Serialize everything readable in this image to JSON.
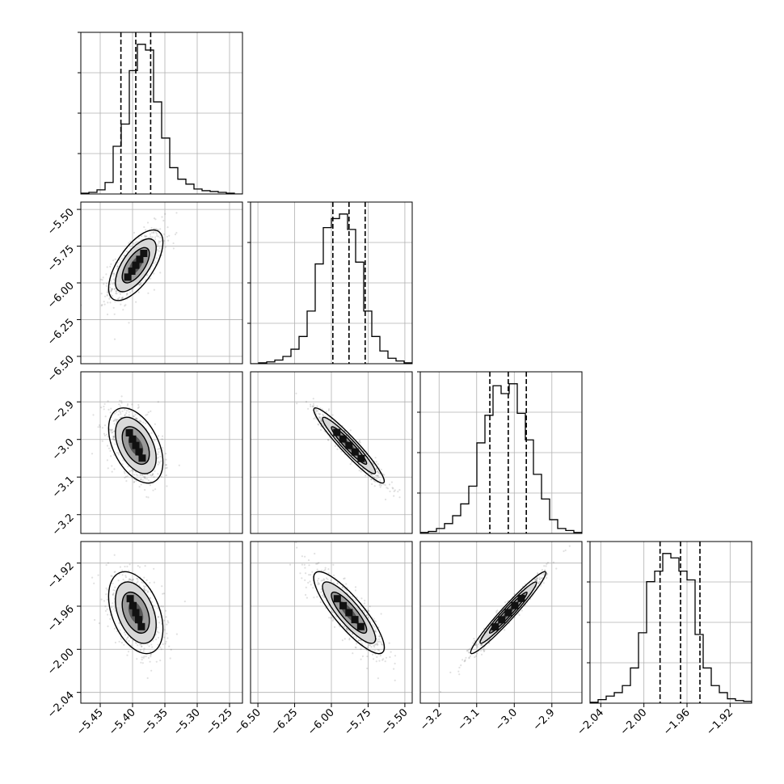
{
  "chart_data": {
    "type": "corner",
    "grid": true,
    "colors": {
      "line": "#000000",
      "grid": "#b0b0b0",
      "scatter": "#000000",
      "fill": "#ffffff"
    },
    "params": [
      {
        "range": [
          -5.48,
          -5.23
        ],
        "ticks": [
          -5.45,
          -5.4,
          -5.35,
          -5.3,
          -5.25
        ],
        "tick_labels": [
          "−5.45",
          "−5.40",
          "−5.35",
          "−5.30",
          "−5.25"
        ],
        "quantiles": [
          -5.418,
          -5.395,
          -5.372
        ],
        "mean": -5.395,
        "sd": 0.021
      },
      {
        "range": [
          -6.55,
          -5.45
        ],
        "ticks": [
          -6.5,
          -6.25,
          -6.0,
          -5.75,
          -5.5
        ],
        "tick_labels": [
          "−6.50",
          "−6.25",
          "−6.00",
          "−5.75",
          "−5.50"
        ],
        "quantiles": [
          -5.99,
          -5.88,
          -5.77
        ],
        "mean": -5.88,
        "sd": 0.12
      },
      {
        "range": [
          -3.25,
          -2.82
        ],
        "ticks": [
          -3.2,
          -3.1,
          -3.0,
          -2.9
        ],
        "tick_labels": [
          "−3.2",
          "−3.1",
          "−3.0",
          "−2.9"
        ],
        "quantiles": [
          -3.065,
          -3.016,
          -2.968
        ],
        "mean": -3.016,
        "sd": 0.05
      },
      {
        "range": [
          -2.05,
          -1.9
        ],
        "ticks": [
          -2.04,
          -2.0,
          -1.96,
          -1.92
        ],
        "tick_labels": [
          "−2.04",
          "−2.00",
          "−1.96",
          "−1.92"
        ],
        "quantiles": [
          -1.985,
          -1.966,
          -1.948
        ],
        "mean": -1.966,
        "sd": 0.019
      }
    ],
    "histograms": [
      [
        1,
        2,
        5,
        14,
        58,
        85,
        150,
        182,
        175,
        112,
        68,
        32,
        18,
        12,
        6,
        4,
        3,
        2,
        1,
        0
      ],
      [
        0,
        1,
        2,
        4,
        8,
        16,
        30,
        58,
        110,
        150,
        160,
        165,
        148,
        112,
        58,
        30,
        14,
        6,
        3,
        1
      ],
      [
        1,
        2,
        5,
        10,
        18,
        30,
        48,
        92,
        120,
        150,
        142,
        152,
        122,
        95,
        60,
        35,
        14,
        5,
        3,
        1
      ],
      [
        1,
        4,
        8,
        12,
        20,
        40,
        80,
        138,
        150,
        170,
        165,
        150,
        140,
        78,
        40,
        20,
        12,
        5,
        3,
        2
      ]
    ],
    "correlations": [
      [
        0,
        1,
        0.65
      ],
      [
        0,
        2,
        -0.45
      ],
      [
        0,
        3,
        -0.4
      ],
      [
        1,
        2,
        -0.95
      ],
      [
        1,
        3,
        -0.85
      ],
      [
        2,
        3,
        0.97
      ]
    ]
  }
}
